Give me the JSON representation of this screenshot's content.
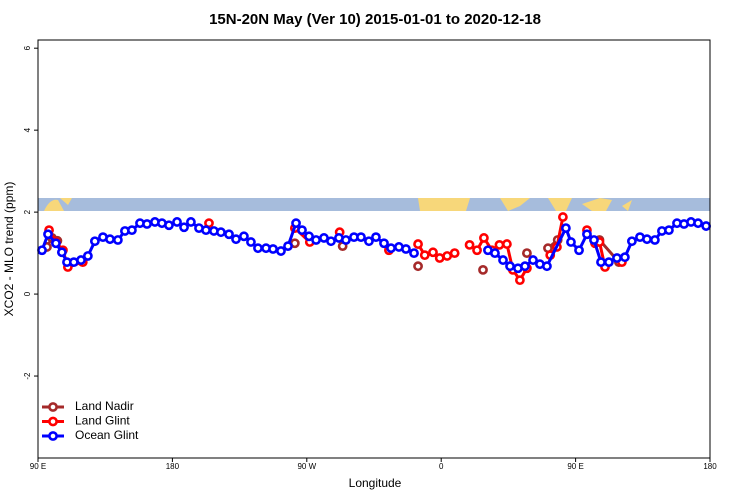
{
  "chart_data": {
    "type": "line",
    "title": "15N-20N May (Ver 10)   2015-01-01 to 2020-12-18",
    "xlabel": "Longitude",
    "ylabel": "XCO2 - MLO trend (ppm)",
    "xlim": [
      90,
      540
    ],
    "ylim": [
      -4,
      6.2
    ],
    "xticks": [
      {
        "value": 90,
        "label": "90 E"
      },
      180,
      {
        "value": 270,
        "label": "90 W"
      },
      {
        "value": 360,
        "label": "0"
      },
      {
        "value": 450,
        "label": "90 E"
      },
      {
        "value": 540,
        "label": "180"
      }
    ],
    "yticks": [
      -2,
      0,
      2,
      4,
      6
    ],
    "legend": "bottom-left",
    "series": [
      {
        "name": "Land Nadir",
        "color": "#a52a2a",
        "x": [
          96,
          99.4,
          103,
          null,
          262,
          null,
          294,
          null,
          344.5,
          null,
          388,
          null,
          417.4,
          null,
          431.5,
          438,
          null,
          466,
          479
        ],
        "values": [
          1.15,
          1.37,
          1.3,
          null,
          1.24,
          null,
          1.17,
          null,
          0.68,
          null,
          0.59,
          null,
          1.0,
          null,
          1.12,
          1.32,
          null,
          1.32,
          0.78
        ]
      },
      {
        "name": "Land Glint",
        "color": "#ff0000",
        "x": [
          97.4,
          102,
          106.7,
          110,
          120,
          null,
          204.5,
          null,
          262,
          272,
          null,
          292,
          null,
          325,
          null,
          344.5,
          349,
          354.5,
          359,
          364,
          369,
          null,
          379,
          384,
          388.6,
          394,
          399,
          404,
          408,
          412.7,
          417.4,
          null,
          433,
          437.5,
          441.5,
          null,
          457.6,
          463,
          466,
          469.7,
          null,
          481
        ],
        "values": [
          1.56,
          1.27,
          1.07,
          0.66,
          0.78,
          null,
          1.73,
          null,
          1.61,
          1.27,
          null,
          1.51,
          null,
          1.07,
          null,
          1.22,
          0.95,
          1.02,
          0.88,
          0.93,
          1.0,
          null,
          1.2,
          1.07,
          1.37,
          1.07,
          1.2,
          1.22,
          0.59,
          0.34,
          0.63,
          null,
          0.95,
          1.15,
          1.88,
          null,
          1.56,
          1.24,
          1.27,
          0.66,
          null,
          0.78
        ]
      },
      {
        "name": "Ocean Glint",
        "color": "#0000ff",
        "x": [
          92.7,
          96.7,
          102,
          106,
          109.4,
          114,
          118.8,
          123.4,
          128.1,
          133.5,
          138.2,
          143.5,
          148.2,
          152.9,
          158.3,
          163,
          168.3,
          173,
          177.7,
          183.1,
          187.8,
          192.4,
          197.8,
          202.5,
          207.8,
          212.5,
          217.9,
          222.6,
          227.9,
          232.6,
          237.3,
          242.7,
          247.4,
          252.7,
          257.4,
          262.8,
          266.8,
          271.5,
          276.2,
          281.5,
          286.2,
          291.5,
          296.2,
          301.6,
          306.3,
          311.6,
          316.3,
          321.7,
          326.4,
          331.7,
          336.4,
          341.8,
          null,
          391.3,
          396,
          401.4,
          406.1,
          411.4,
          416.1,
          421.5,
          426.1,
          430.8,
          443.5,
          446.9,
          452.3,
          457.6,
          462.3,
          467,
          472.3,
          477.7,
          483,
          487.7,
          493.1,
          497.8,
          503.1,
          507.8,
          512.5,
          517.9,
          522.6,
          527.3,
          532,
          537.4
        ],
        "values": [
          1.07,
          1.46,
          1.24,
          1.02,
          0.78,
          0.78,
          0.83,
          0.93,
          1.29,
          1.39,
          1.34,
          1.32,
          1.54,
          1.56,
          1.73,
          1.71,
          1.76,
          1.73,
          1.68,
          1.76,
          1.63,
          1.76,
          1.61,
          1.56,
          1.54,
          1.51,
          1.46,
          1.34,
          1.41,
          1.27,
          1.12,
          1.12,
          1.1,
          1.05,
          1.17,
          1.73,
          1.56,
          1.41,
          1.32,
          1.37,
          1.29,
          1.37,
          1.32,
          1.39,
          1.39,
          1.29,
          1.39,
          1.24,
          1.12,
          1.15,
          1.1,
          1.0,
          null,
          1.07,
          1.0,
          0.83,
          0.68,
          0.63,
          0.68,
          0.83,
          0.73,
          0.68,
          1.61,
          1.27,
          1.07,
          1.46,
          1.32,
          0.78,
          0.78,
          0.88,
          0.9,
          1.29,
          1.39,
          1.34,
          1.32,
          1.54,
          1.56,
          1.73,
          1.71,
          1.76,
          1.73,
          1.66
        ]
      }
    ]
  }
}
